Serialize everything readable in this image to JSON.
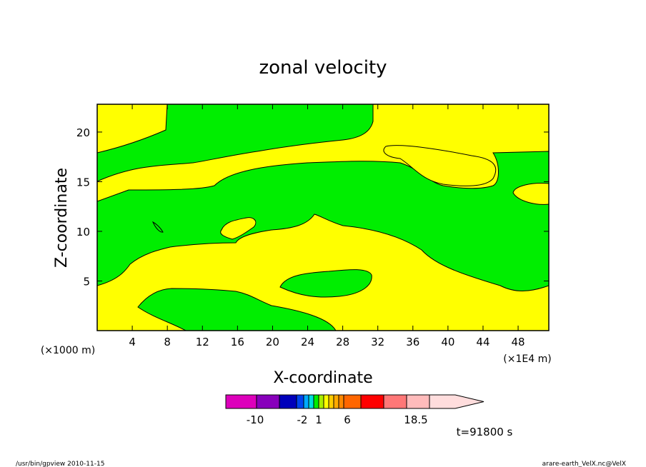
{
  "chart_data": {
    "type": "contour",
    "title": "zonal velocity",
    "xlabel": "X-coordinate",
    "ylabel": "Z-coordinate",
    "x_unit_note": "(×1E4 m)",
    "y_unit_note": "(×1000 m)",
    "xlim": [
      0,
      51.5
    ],
    "ylim": [
      0,
      22.8
    ],
    "x_ticks": [
      4,
      8,
      12,
      16,
      20,
      24,
      28,
      32,
      36,
      40,
      44,
      48
    ],
    "y_ticks": [
      5,
      10,
      15,
      20
    ],
    "fill_colors": {
      "positive": "#ffff00",
      "negative": "#00ee00"
    },
    "colorbar": {
      "labels": [
        "-10",
        "-2",
        "1",
        "6",
        "18.5"
      ],
      "colors": [
        "#dd00bb",
        "#8800bb",
        "#0000bb",
        "#0044ee",
        "#00aaff",
        "#00dddd",
        "#00ee00",
        "#aaee00",
        "#ffff00",
        "#ffcc00",
        "#ffaa00",
        "#ff8800",
        "#ff6600",
        "#ff0000",
        "#ff7777",
        "#ffbbbb",
        "#ffdddd"
      ]
    },
    "time_label": "t=91800 s"
  },
  "footer": {
    "left": "/usr/bin/gpview   2010-11-15",
    "right": "arare-earth_VelX.nc@VelX"
  }
}
